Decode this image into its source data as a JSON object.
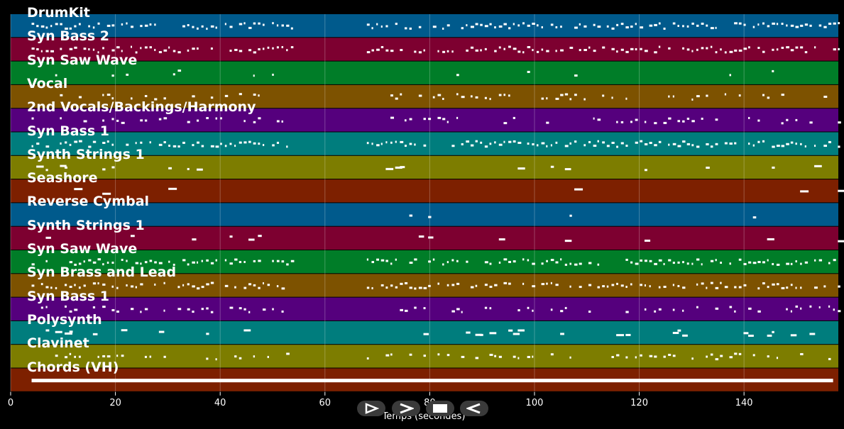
{
  "tracks": [
    {
      "name": "DrumKit",
      "color": "#005a8c",
      "style": "dense"
    },
    {
      "name": "Syn Bass 2",
      "color": "#7d0030",
      "style": "dense"
    },
    {
      "name": "Syn Saw Wave",
      "color": "#007d28",
      "style": "sparse"
    },
    {
      "name": "Vocal",
      "color": "#7d5200",
      "style": "medium"
    },
    {
      "name": "2nd Vocals/Backings/Harmony",
      "color": "#55007d",
      "style": "medium"
    },
    {
      "name": "Syn Bass 1",
      "color": "#007d7d",
      "style": "dense"
    },
    {
      "name": "Synth Strings 1",
      "color": "#7d7d00",
      "style": "blocks"
    },
    {
      "name": "Seashore",
      "color": "#7d2000",
      "style": "long"
    },
    {
      "name": "Reverse Cymbal",
      "color": "#005a8c",
      "style": "rare"
    },
    {
      "name": "Synth Strings 1",
      "color": "#7d0030",
      "style": "blocks"
    },
    {
      "name": "Syn Saw Wave",
      "color": "#007d28",
      "style": "dense"
    },
    {
      "name": "Syn Brass and Lead",
      "color": "#7d5200",
      "style": "dense"
    },
    {
      "name": "Syn Bass 1",
      "color": "#55007d",
      "style": "medium"
    },
    {
      "name": "Polysynth",
      "color": "#007d7d",
      "style": "blocks"
    },
    {
      "name": "Clavinet",
      "color": "#7d7d00",
      "style": "medium"
    },
    {
      "name": "Chords (VH)",
      "color": "#7d2000",
      "style": "solid"
    }
  ],
  "axis": {
    "title": "Temps (secondes)",
    "ticks": [
      "0",
      "20",
      "40",
      "60",
      "80",
      "100",
      "120",
      "140"
    ],
    "tick_values": [
      0,
      20,
      40,
      60,
      80,
      100,
      120,
      140
    ],
    "range": [
      0,
      158
    ]
  },
  "controls": [
    {
      "name": "prev-icon"
    },
    {
      "name": "next-icon"
    },
    {
      "name": "stop-icon"
    },
    {
      "name": "back-icon"
    }
  ]
}
